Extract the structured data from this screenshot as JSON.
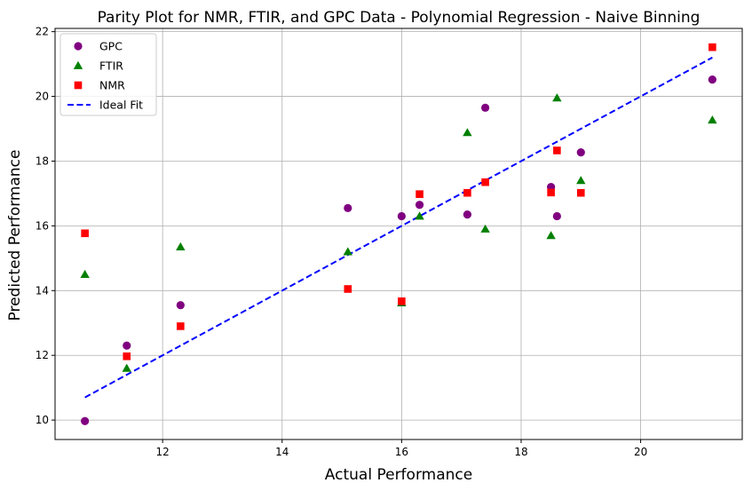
{
  "chart_data": {
    "type": "scatter",
    "title": "Parity Plot for NMR, FTIR, and GPC Data - Polynomial Regression - Naive Binning",
    "xlabel": "Actual Performance",
    "ylabel": "Predicted Performance",
    "xlim": [
      10.2,
      21.7
    ],
    "ylim": [
      9.4,
      22.1
    ],
    "xticks": [
      12,
      14,
      16,
      18,
      20
    ],
    "yticks": [
      10,
      12,
      14,
      16,
      18,
      20,
      22
    ],
    "grid": true,
    "legend_position": "top-left",
    "series": [
      {
        "name": "GPC",
        "marker": "circle",
        "color": "#800080",
        "points": [
          [
            10.7,
            9.97
          ],
          [
            11.4,
            12.3
          ],
          [
            12.3,
            13.55
          ],
          [
            15.1,
            16.55
          ],
          [
            16.0,
            16.3
          ],
          [
            16.3,
            16.65
          ],
          [
            17.1,
            16.35
          ],
          [
            17.4,
            19.65
          ],
          [
            18.5,
            17.2
          ],
          [
            18.6,
            16.3
          ],
          [
            19.0,
            18.27
          ],
          [
            21.2,
            20.52
          ]
        ]
      },
      {
        "name": "FTIR",
        "marker": "triangle",
        "color": "#008000",
        "points": [
          [
            10.7,
            14.5
          ],
          [
            11.4,
            11.6
          ],
          [
            12.3,
            15.35
          ],
          [
            15.1,
            15.2
          ],
          [
            16.0,
            13.62
          ],
          [
            16.3,
            16.3
          ],
          [
            17.1,
            18.88
          ],
          [
            17.4,
            15.9
          ],
          [
            18.5,
            15.7
          ],
          [
            18.6,
            19.95
          ],
          [
            19.0,
            17.4
          ],
          [
            21.2,
            19.27
          ]
        ]
      },
      {
        "name": "NMR",
        "marker": "square",
        "color": "#ff0000",
        "points": [
          [
            10.7,
            15.77
          ],
          [
            11.4,
            11.97
          ],
          [
            12.3,
            12.9
          ],
          [
            15.1,
            14.05
          ],
          [
            16.0,
            13.67
          ],
          [
            16.3,
            16.98
          ],
          [
            17.1,
            17.02
          ],
          [
            17.4,
            17.35
          ],
          [
            18.5,
            17.03
          ],
          [
            18.6,
            18.33
          ],
          [
            19.0,
            17.02
          ],
          [
            21.2,
            21.52
          ]
        ]
      }
    ],
    "ideal_fit": {
      "name": "Ideal Fit",
      "style": "dashed",
      "color": "#0000ff",
      "from": [
        10.7,
        10.7
      ],
      "to": [
        21.2,
        21.2
      ]
    }
  }
}
